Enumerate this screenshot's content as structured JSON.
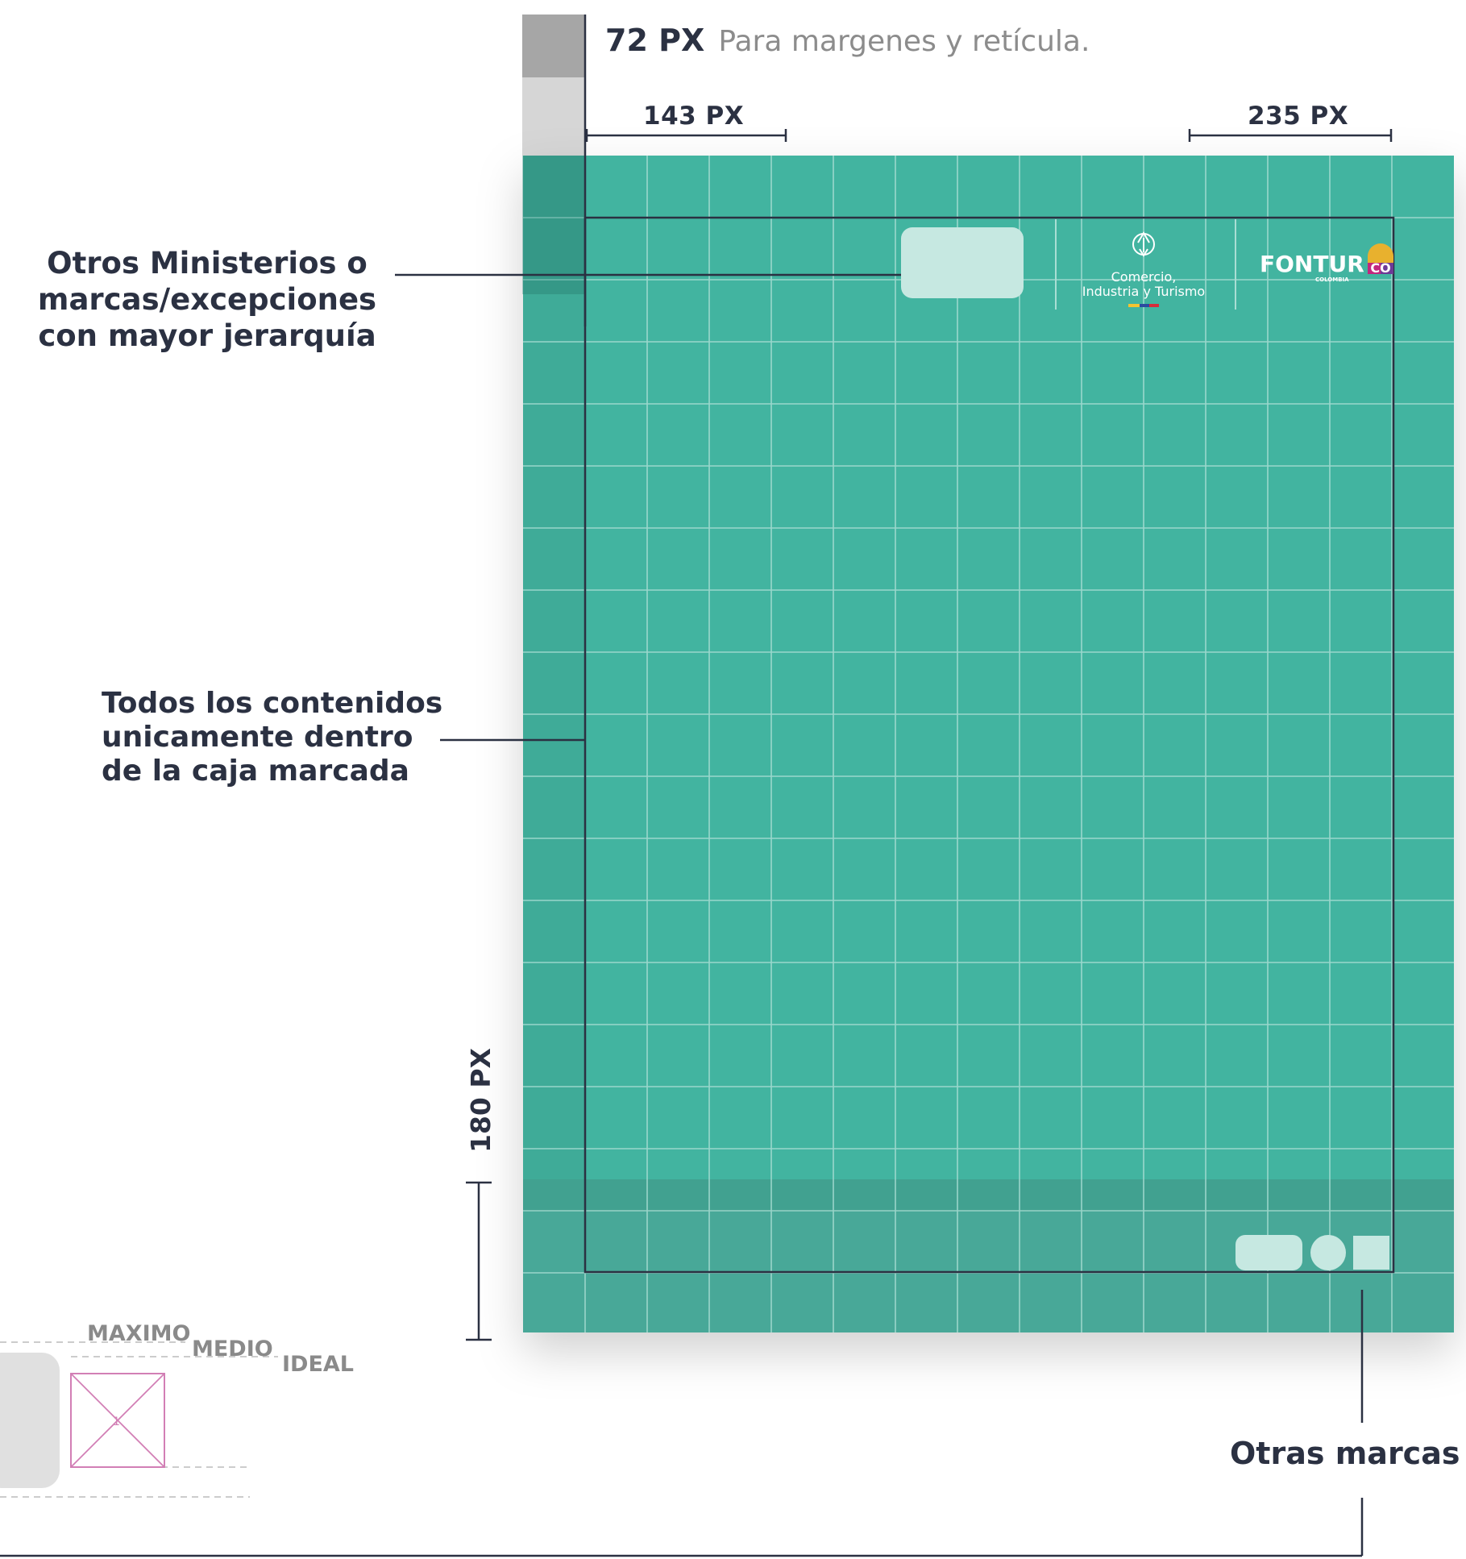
{
  "header": {
    "margin_value": "72 PX",
    "margin_text": "Para margenes y retícula."
  },
  "measures": {
    "left_width": "143 PX",
    "right_width": "235 PX",
    "bottom_height": "180 PX"
  },
  "callouts": {
    "ministries": [
      "Otros Ministerios o",
      "marcas/excepciones",
      "con mayor jerarquía"
    ],
    "contents": [
      "Todos los contenidos",
      "unicamente dentro",
      "de la caja marcada"
    ],
    "other_brands": "Otras marcas"
  },
  "logos": {
    "ministry_line1": "Comercio,",
    "ministry_line2": "Industria y Turismo",
    "fontur": "FONTUR",
    "fontur_sub": "COLOMBIA",
    "co": "CO"
  },
  "scale": {
    "maximo": "MAXIMO",
    "medio": "MEDIO",
    "ideal": "IDEAL",
    "box_number": "1"
  },
  "colors": {
    "canvas": "#42b4a0",
    "canvas_dark": "#3a9e8d",
    "footer_band": "#48a898",
    "footer_top": "#3d9a8a",
    "guide": "#2b3142",
    "grid": "#a9ded4",
    "placeholder": "#c6e8e1",
    "pink": "#d27fb5"
  }
}
